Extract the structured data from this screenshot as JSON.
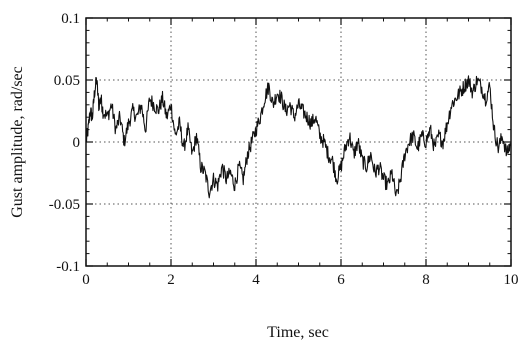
{
  "chart_data": {
    "type": "line",
    "title": "",
    "xlabel": "Time, sec",
    "ylabel": "Gust amplitude, rad/sec",
    "xlim": [
      0,
      10
    ],
    "ylim": [
      -0.1,
      0.1
    ],
    "grid": true,
    "grid_style": "dotted",
    "x_ticks": [
      0,
      2,
      4,
      6,
      8,
      10
    ],
    "x_tick_labels": [
      "0",
      "2",
      "4",
      "6",
      "8",
      "10"
    ],
    "y_ticks": [
      -0.1,
      -0.05,
      0,
      0.05,
      0.1
    ],
    "y_tick_labels": [
      "-0.1",
      "-0.05",
      "0",
      "0.05",
      "0.1"
    ],
    "series": [
      {
        "color": "#111111",
        "x": [
          0,
          0.05,
          0.1,
          0.15,
          0.2,
          0.25,
          0.3,
          0.35,
          0.4,
          0.5,
          0.6,
          0.7,
          0.8,
          0.9,
          1.0,
          1.1,
          1.2,
          1.3,
          1.4,
          1.5,
          1.6,
          1.7,
          1.8,
          1.9,
          2.0,
          2.1,
          2.2,
          2.3,
          2.4,
          2.5,
          2.6,
          2.7,
          2.8,
          2.9,
          3.0,
          3.1,
          3.2,
          3.3,
          3.4,
          3.5,
          3.6,
          3.7,
          3.8,
          3.9,
          4.0,
          4.1,
          4.2,
          4.3,
          4.4,
          4.5,
          4.6,
          4.7,
          4.8,
          4.9,
          5.0,
          5.1,
          5.2,
          5.3,
          5.4,
          5.5,
          5.6,
          5.7,
          5.8,
          5.9,
          6.0,
          6.1,
          6.2,
          6.3,
          6.4,
          6.5,
          6.6,
          6.7,
          6.8,
          6.9,
          7.0,
          7.1,
          7.2,
          7.3,
          7.4,
          7.5,
          7.6,
          7.7,
          7.8,
          7.9,
          8.0,
          8.1,
          8.2,
          8.3,
          8.4,
          8.5,
          8.6,
          8.7,
          8.8,
          8.9,
          9.0,
          9.1,
          9.2,
          9.3,
          9.4,
          9.5,
          9.6,
          9.7,
          9.8,
          9.9,
          10.0
        ],
        "values": [
          0,
          0.01,
          0.025,
          0.02,
          0.04,
          0.05,
          0.03,
          0.035,
          0.025,
          0.02,
          0.03,
          0.01,
          0.02,
          0.0,
          0.015,
          0.025,
          0.02,
          0.03,
          0.01,
          0.035,
          0.03,
          0.025,
          0.035,
          0.02,
          0.03,
          0.005,
          0.015,
          -0.005,
          0.01,
          -0.01,
          0.005,
          -0.02,
          -0.025,
          -0.04,
          -0.03,
          -0.035,
          -0.02,
          -0.03,
          -0.025,
          -0.035,
          -0.02,
          -0.03,
          -0.01,
          0.0,
          0.01,
          0.02,
          0.035,
          0.045,
          0.03,
          0.04,
          0.035,
          0.025,
          0.03,
          0.02,
          0.03,
          0.025,
          0.02,
          0.015,
          0.02,
          0.005,
          0.0,
          -0.01,
          -0.015,
          -0.03,
          -0.02,
          -0.005,
          0.005,
          -0.01,
          0.0,
          -0.015,
          -0.02,
          -0.01,
          -0.025,
          -0.02,
          -0.03,
          -0.035,
          -0.025,
          -0.045,
          -0.03,
          -0.01,
          0.0,
          0.005,
          -0.005,
          0.005,
          0.0,
          0.01,
          -0.005,
          0.005,
          0.0,
          0.015,
          0.03,
          0.035,
          0.04,
          0.045,
          0.05,
          0.04,
          0.05,
          0.045,
          0.035,
          0.045,
          0.01,
          -0.005,
          0.005,
          -0.01,
          0.0
        ]
      }
    ]
  }
}
